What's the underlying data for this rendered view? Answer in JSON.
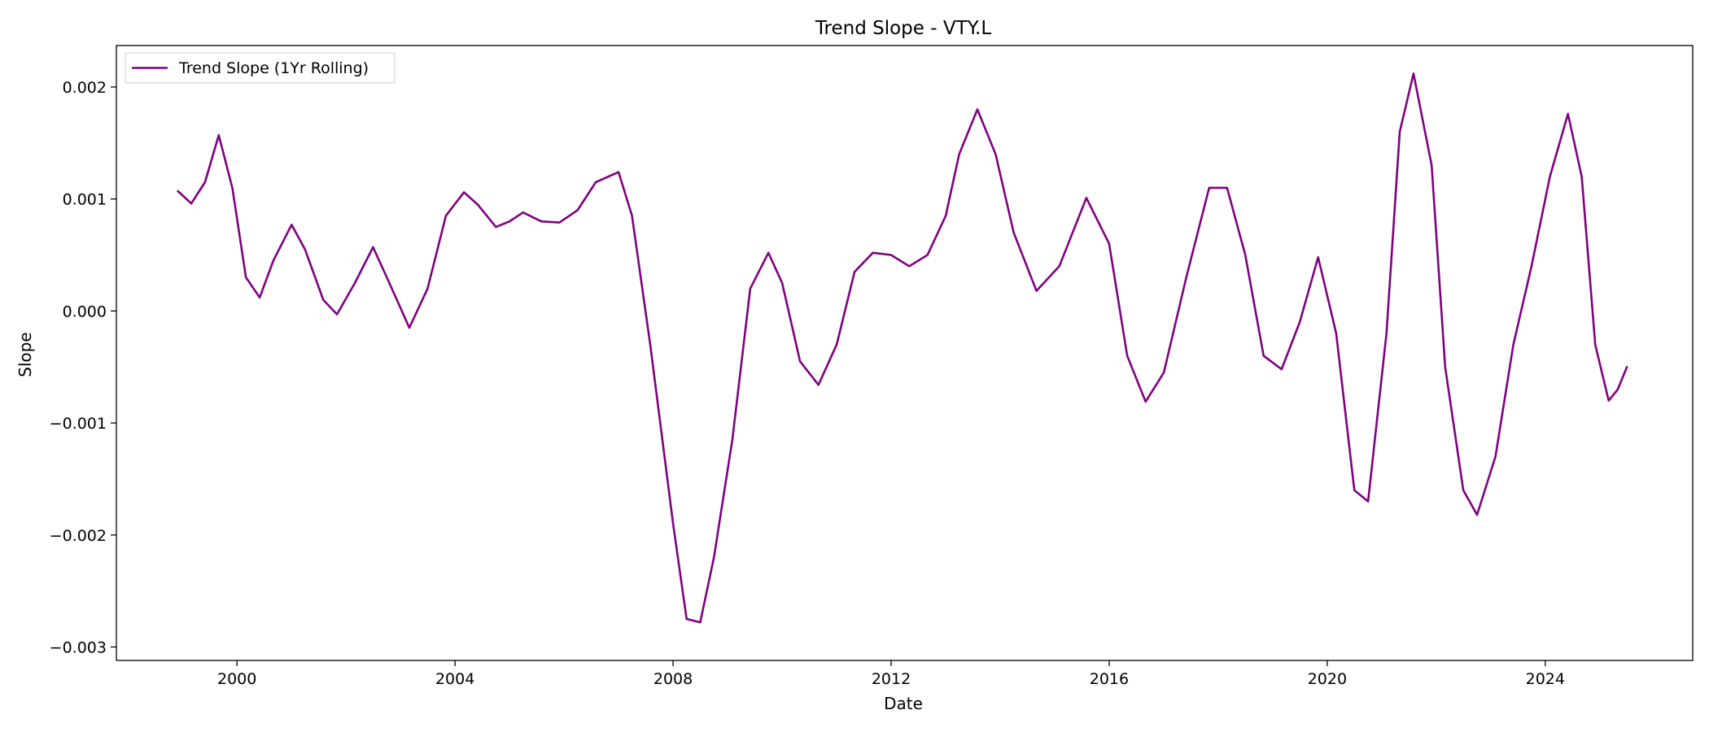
{
  "chart_data": {
    "type": "line",
    "title": "Trend Slope - VTY.L",
    "xlabel": "Date",
    "ylabel": "Slope",
    "xlim": [
      "1997-10-15",
      "2026-09-15"
    ],
    "ylim": [
      -0.00312,
      0.00237
    ],
    "x_ticks": [
      "2000",
      "2004",
      "2008",
      "2012",
      "2016",
      "2020",
      "2024"
    ],
    "y_ticks": [
      "0.002",
      "0.001",
      "0.000",
      "−0.001",
      "−0.002",
      "−0.003"
    ],
    "grid": false,
    "legend_position": "upper-left",
    "series": [
      {
        "name": "Trend Slope (1Yr Rolling)",
        "color": "#800080",
        "points": [
          [
            "1998-12-01",
            0.00107
          ],
          [
            "1999-03-01",
            0.00096
          ],
          [
            "1999-06-01",
            0.00115
          ],
          [
            "1999-09-01",
            0.00157
          ],
          [
            "1999-12-01",
            0.0011
          ],
          [
            "2000-03-01",
            0.0003
          ],
          [
            "2000-06-01",
            0.00012
          ],
          [
            "2000-09-01",
            0.00045
          ],
          [
            "2001-01-01",
            0.00077
          ],
          [
            "2001-04-01",
            0.00055
          ],
          [
            "2001-08-01",
            0.0001
          ],
          [
            "2001-11-01",
            -3e-05
          ],
          [
            "2002-03-01",
            0.00025
          ],
          [
            "2002-07-01",
            0.00057
          ],
          [
            "2002-10-01",
            0.0003
          ],
          [
            "2003-03-01",
            -0.00015
          ],
          [
            "2003-07-01",
            0.0002
          ],
          [
            "2003-11-01",
            0.00085
          ],
          [
            "2004-03-01",
            0.00106
          ],
          [
            "2004-06-01",
            0.00095
          ],
          [
            "2004-10-01",
            0.00075
          ],
          [
            "2005-01-01",
            0.0008
          ],
          [
            "2005-04-01",
            0.00088
          ],
          [
            "2005-08-01",
            0.0008
          ],
          [
            "2005-12-01",
            0.00079
          ],
          [
            "2006-04-01",
            0.0009
          ],
          [
            "2006-08-01",
            0.00115
          ],
          [
            "2007-01-01",
            0.00124
          ],
          [
            "2007-04-01",
            0.00085
          ],
          [
            "2007-08-01",
            -0.0003
          ],
          [
            "2008-01-01",
            -0.0019
          ],
          [
            "2008-04-01",
            -0.00275
          ],
          [
            "2008-07-01",
            -0.00278
          ],
          [
            "2008-10-01",
            -0.0022
          ],
          [
            "2009-02-01",
            -0.00115
          ],
          [
            "2009-06-01",
            0.0002
          ],
          [
            "2009-10-01",
            0.00052
          ],
          [
            "2010-01-01",
            0.00025
          ],
          [
            "2010-05-01",
            -0.00045
          ],
          [
            "2010-09-01",
            -0.00066
          ],
          [
            "2011-01-01",
            -0.0003
          ],
          [
            "2011-05-01",
            0.00035
          ],
          [
            "2011-09-01",
            0.00052
          ],
          [
            "2012-01-01",
            0.0005
          ],
          [
            "2012-05-01",
            0.0004
          ],
          [
            "2012-09-01",
            0.0005
          ],
          [
            "2013-01-01",
            0.00085
          ],
          [
            "2013-04-01",
            0.0014
          ],
          [
            "2013-08-01",
            0.0018
          ],
          [
            "2013-12-01",
            0.0014
          ],
          [
            "2014-04-01",
            0.0007
          ],
          [
            "2014-09-01",
            0.00018
          ],
          [
            "2015-02-01",
            0.0004
          ],
          [
            "2015-08-01",
            0.00101
          ],
          [
            "2016-01-01",
            0.0006
          ],
          [
            "2016-05-01",
            -0.0004
          ],
          [
            "2016-09-01",
            -0.00081
          ],
          [
            "2017-01-01",
            -0.00055
          ],
          [
            "2017-06-01",
            0.0003
          ],
          [
            "2017-11-01",
            0.0011
          ],
          [
            "2018-03-01",
            0.0011
          ],
          [
            "2018-07-01",
            0.0005
          ],
          [
            "2018-11-01",
            -0.0004
          ],
          [
            "2019-03-01",
            -0.00052
          ],
          [
            "2019-07-01",
            -0.0001
          ],
          [
            "2019-11-01",
            0.00048
          ],
          [
            "2020-03-01",
            -0.0002
          ],
          [
            "2020-07-01",
            -0.0016
          ],
          [
            "2020-10-01",
            -0.0017
          ],
          [
            "2021-02-01",
            -0.0002
          ],
          [
            "2021-05-01",
            0.0016
          ],
          [
            "2021-08-01",
            0.00212
          ],
          [
            "2021-12-01",
            0.0013
          ],
          [
            "2022-03-01",
            -0.0005
          ],
          [
            "2022-07-01",
            -0.0016
          ],
          [
            "2022-10-01",
            -0.00182
          ],
          [
            "2023-02-01",
            -0.0013
          ],
          [
            "2023-06-01",
            -0.0003
          ],
          [
            "2023-10-01",
            0.0004
          ],
          [
            "2024-02-01",
            0.0012
          ],
          [
            "2024-06-01",
            0.00176
          ],
          [
            "2024-09-01",
            0.0012
          ],
          [
            "2024-12-01",
            -0.0003
          ],
          [
            "2025-03-01",
            -0.0008
          ],
          [
            "2025-05-01",
            -0.0007
          ],
          [
            "2025-07-01",
            -0.0005
          ]
        ]
      }
    ]
  }
}
